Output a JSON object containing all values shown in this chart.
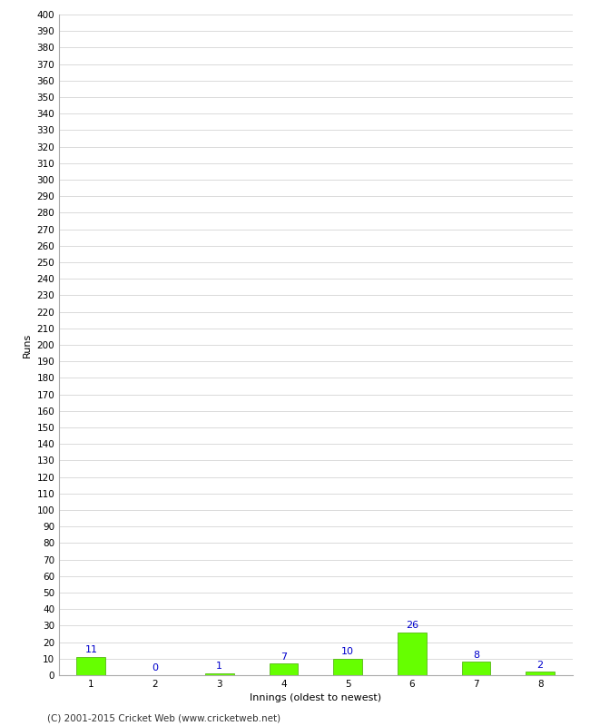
{
  "xlabel": "Innings (oldest to newest)",
  "ylabel": "Runs",
  "categories": [
    "1",
    "2",
    "3",
    "4",
    "5",
    "6",
    "7",
    "8"
  ],
  "values": [
    11,
    0,
    1,
    7,
    10,
    26,
    8,
    2
  ],
  "bar_color": "#66ff00",
  "bar_edge_color": "#44aa00",
  "label_color": "#0000cc",
  "ylim": [
    0,
    400
  ],
  "ytick_step": 10,
  "background_color": "#ffffff",
  "grid_color": "#cccccc",
  "footer_text": "(C) 2001-2015 Cricket Web (www.cricketweb.net)",
  "label_fontsize": 8,
  "axis_label_fontsize": 8,
  "tick_fontsize": 7.5,
  "footer_fontsize": 7.5,
  "bar_width": 0.45
}
